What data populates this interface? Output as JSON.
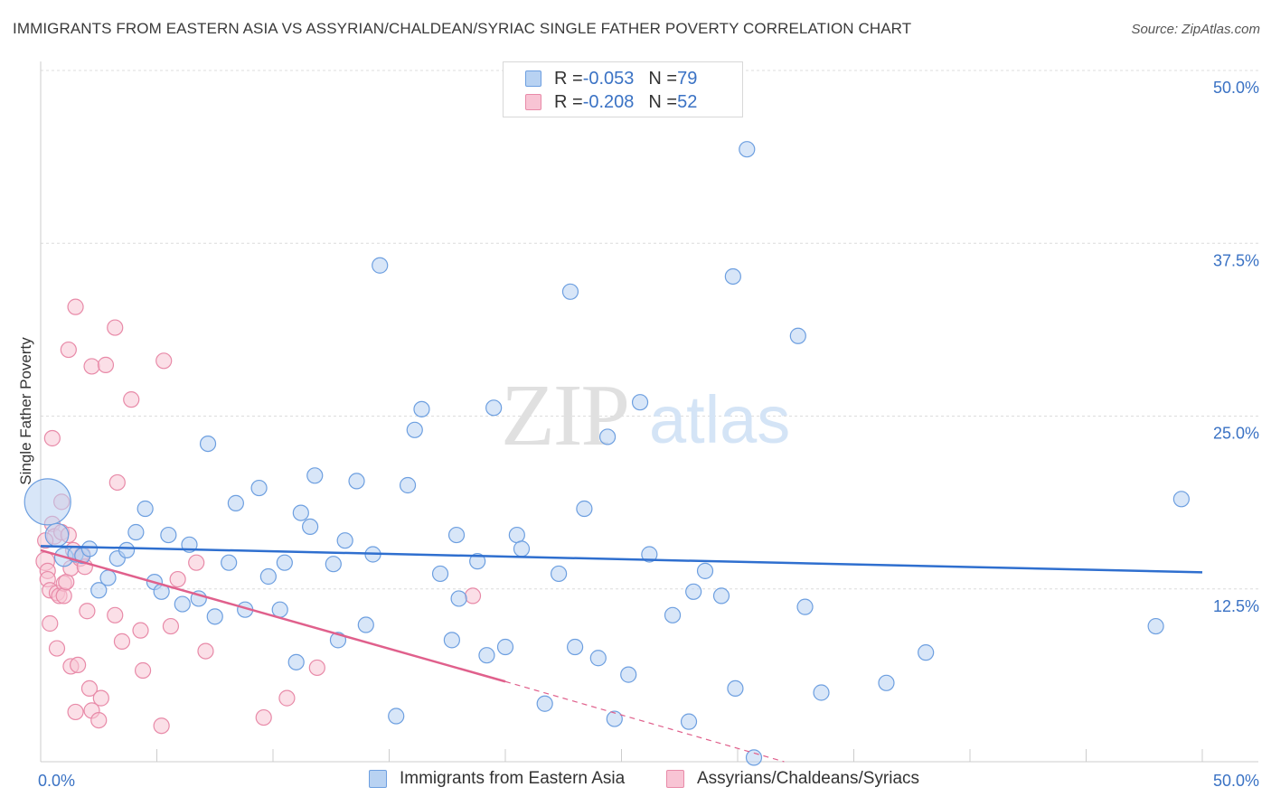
{
  "header": {
    "title": "IMMIGRANTS FROM EASTERN ASIA VS ASSYRIAN/CHALDEAN/SYRIAC SINGLE FATHER POVERTY CORRELATION CHART",
    "source": "Source: ZipAtlas.com"
  },
  "watermark": {
    "zip": "ZIP",
    "atlas": "atlas"
  },
  "legend": {
    "rows": [
      {
        "r_label": "R = ",
        "r_value": "-0.053",
        "n_label": "N = ",
        "n_value": "79"
      },
      {
        "r_label": "R = ",
        "r_value": "-0.208",
        "n_label": "N = ",
        "n_value": "52"
      }
    ]
  },
  "colors": {
    "blue_fill": "#b8d2f2",
    "blue_stroke": "#6d9fe0",
    "blue_line": "#2f6fcf",
    "pink_fill": "#f8c4d4",
    "pink_stroke": "#e88aa8",
    "pink_line": "#e0608c",
    "grid": "#dcdcdc",
    "tick": "#3a72c4"
  },
  "chart_data": {
    "type": "scatter",
    "title": "IMMIGRANTS FROM EASTERN ASIA VS ASSYRIAN/CHALDEAN/SYRIAC SINGLE FATHER POVERTY CORRELATION CHART",
    "xlabel": "",
    "ylabel": "Single Father Poverty",
    "xlim": [
      0,
      50
    ],
    "ylim": [
      0,
      50
    ],
    "x_tick_labels": [
      "0.0%",
      "50.0%"
    ],
    "y_ticks": [
      12.5,
      25.0,
      37.5,
      50.0
    ],
    "y_tick_labels": [
      "12.5%",
      "25.0%",
      "37.5%",
      "50.0%"
    ],
    "legend_position": "top-center",
    "series": [
      {
        "name": "Immigrants from Eastern Asia",
        "color": "#b8d2f2",
        "r": -0.053,
        "n": 79,
        "trend": {
          "x": [
            0,
            50
          ],
          "y": [
            15.6,
            13.7
          ],
          "dashed_to": null
        },
        "points": [
          [
            0.3,
            18.8,
            3
          ],
          [
            0.7,
            16.4,
            1.5
          ],
          [
            1.0,
            14.8,
            1.2
          ],
          [
            1.5,
            15.0,
            1
          ],
          [
            1.8,
            14.9,
            1
          ],
          [
            2.1,
            15.4,
            1
          ],
          [
            2.5,
            12.4,
            1
          ],
          [
            2.9,
            13.3,
            1
          ],
          [
            3.3,
            14.7,
            1
          ],
          [
            3.7,
            15.3,
            1
          ],
          [
            4.1,
            16.6,
            1
          ],
          [
            4.5,
            18.3,
            1
          ],
          [
            4.9,
            13.0,
            1
          ],
          [
            5.2,
            12.3,
            1
          ],
          [
            5.5,
            16.4,
            1
          ],
          [
            6.1,
            11.4,
            1
          ],
          [
            6.4,
            15.7,
            1
          ],
          [
            6.8,
            11.8,
            1
          ],
          [
            7.2,
            23.0,
            1
          ],
          [
            7.5,
            10.5,
            1
          ],
          [
            8.1,
            14.4,
            1
          ],
          [
            8.4,
            18.7,
            1
          ],
          [
            8.8,
            11.0,
            1
          ],
          [
            9.4,
            19.8,
            1
          ],
          [
            9.8,
            13.4,
            1
          ],
          [
            10.3,
            11.0,
            1
          ],
          [
            10.5,
            14.4,
            1
          ],
          [
            11.0,
            7.2,
            1
          ],
          [
            11.2,
            18.0,
            1
          ],
          [
            11.6,
            17.0,
            1
          ],
          [
            11.8,
            20.7,
            1
          ],
          [
            12.6,
            14.3,
            1
          ],
          [
            12.8,
            8.8,
            1
          ],
          [
            13.1,
            16.0,
            1
          ],
          [
            13.6,
            20.3,
            1
          ],
          [
            14.0,
            9.9,
            1
          ],
          [
            14.3,
            15.0,
            1
          ],
          [
            14.6,
            35.9,
            1
          ],
          [
            15.3,
            3.3,
            1
          ],
          [
            15.8,
            20.0,
            1
          ],
          [
            16.1,
            24.0,
            1
          ],
          [
            16.4,
            25.5,
            1
          ],
          [
            17.2,
            13.6,
            1
          ],
          [
            17.7,
            8.8,
            1
          ],
          [
            17.9,
            16.4,
            1
          ],
          [
            18.0,
            11.8,
            1
          ],
          [
            18.8,
            14.5,
            1
          ],
          [
            19.2,
            7.7,
            1
          ],
          [
            19.5,
            25.6,
            1
          ],
          [
            20.0,
            8.3,
            1
          ],
          [
            20.5,
            16.4,
            1
          ],
          [
            20.7,
            15.4,
            1
          ],
          [
            21.7,
            4.2,
            1
          ],
          [
            22.3,
            13.6,
            1
          ],
          [
            22.8,
            34.0,
            1
          ],
          [
            23.0,
            8.3,
            1
          ],
          [
            23.4,
            18.3,
            1
          ],
          [
            24.0,
            7.5,
            1
          ],
          [
            24.4,
            23.5,
            1
          ],
          [
            24.7,
            3.1,
            1
          ],
          [
            25.3,
            6.3,
            1
          ],
          [
            25.8,
            26.0,
            1
          ],
          [
            26.2,
            15.0,
            1
          ],
          [
            27.2,
            10.6,
            1
          ],
          [
            27.9,
            2.9,
            1
          ],
          [
            28.1,
            12.3,
            1
          ],
          [
            28.6,
            13.8,
            1
          ],
          [
            29.3,
            12.0,
            1
          ],
          [
            29.8,
            35.1,
            1
          ],
          [
            29.9,
            5.3,
            1
          ],
          [
            30.4,
            44.3,
            1
          ],
          [
            30.7,
            0.3,
            1
          ],
          [
            32.6,
            30.8,
            1
          ],
          [
            32.9,
            11.2,
            1
          ],
          [
            33.6,
            5.0,
            1
          ],
          [
            36.4,
            5.7,
            1
          ],
          [
            38.1,
            7.9,
            1
          ],
          [
            48.0,
            9.8,
            1
          ],
          [
            49.1,
            19.0,
            1
          ]
        ]
      },
      {
        "name": "Assyrians/Chaldeans/Syriacs",
        "color": "#f8c4d4",
        "r": -0.208,
        "n": 52,
        "trend": {
          "x": [
            0,
            20
          ],
          "y": [
            15.3,
            5.8
          ],
          "dashed_to": [
            32,
            0
          ]
        },
        "points": [
          [
            0.2,
            14.5,
            1.2
          ],
          [
            0.3,
            13.8,
            1
          ],
          [
            0.3,
            13.2,
            1
          ],
          [
            0.4,
            12.4,
            1
          ],
          [
            0.4,
            10.0,
            1
          ],
          [
            0.5,
            17.2,
            1
          ],
          [
            0.5,
            23.4,
            1
          ],
          [
            0.6,
            16.3,
            1
          ],
          [
            0.7,
            12.2,
            1
          ],
          [
            0.7,
            8.2,
            1
          ],
          [
            0.8,
            12.0,
            1
          ],
          [
            0.9,
            16.6,
            1
          ],
          [
            1.0,
            12.9,
            1
          ],
          [
            1.0,
            12.0,
            1
          ],
          [
            1.1,
            13.0,
            1
          ],
          [
            1.2,
            16.4,
            1
          ],
          [
            1.2,
            29.8,
            1
          ],
          [
            1.3,
            14.0,
            1
          ],
          [
            1.3,
            6.9,
            1
          ],
          [
            1.4,
            15.3,
            1
          ],
          [
            1.5,
            3.6,
            1
          ],
          [
            1.5,
            32.9,
            1
          ],
          [
            1.6,
            7.0,
            1
          ],
          [
            1.7,
            14.7,
            1
          ],
          [
            1.8,
            15.0,
            1
          ],
          [
            1.9,
            14.1,
            1
          ],
          [
            2.0,
            10.9,
            1
          ],
          [
            2.1,
            5.3,
            1
          ],
          [
            2.2,
            3.7,
            1
          ],
          [
            2.2,
            28.6,
            1
          ],
          [
            2.5,
            3.0,
            1
          ],
          [
            2.6,
            4.6,
            1
          ],
          [
            2.8,
            28.7,
            1
          ],
          [
            3.2,
            31.4,
            1
          ],
          [
            3.2,
            10.6,
            1
          ],
          [
            3.3,
            20.2,
            1
          ],
          [
            3.5,
            8.7,
            1
          ],
          [
            3.9,
            26.2,
            1
          ],
          [
            4.3,
            9.5,
            1
          ],
          [
            4.4,
            6.6,
            1
          ],
          [
            5.2,
            2.6,
            1
          ],
          [
            5.3,
            29.0,
            1
          ],
          [
            5.6,
            9.8,
            1
          ],
          [
            5.9,
            13.2,
            1
          ],
          [
            6.7,
            14.4,
            1
          ],
          [
            7.1,
            8.0,
            1
          ],
          [
            9.6,
            3.2,
            1
          ],
          [
            10.6,
            4.6,
            1
          ],
          [
            11.9,
            6.8,
            1
          ],
          [
            18.6,
            12.0,
            1
          ],
          [
            0.9,
            18.8,
            1
          ],
          [
            0.2,
            16.0,
            1
          ]
        ]
      }
    ]
  },
  "bottom_legend": {
    "items": [
      {
        "label": "Immigrants from Eastern Asia"
      },
      {
        "label": "Assyrians/Chaldeans/Syriacs"
      }
    ]
  }
}
